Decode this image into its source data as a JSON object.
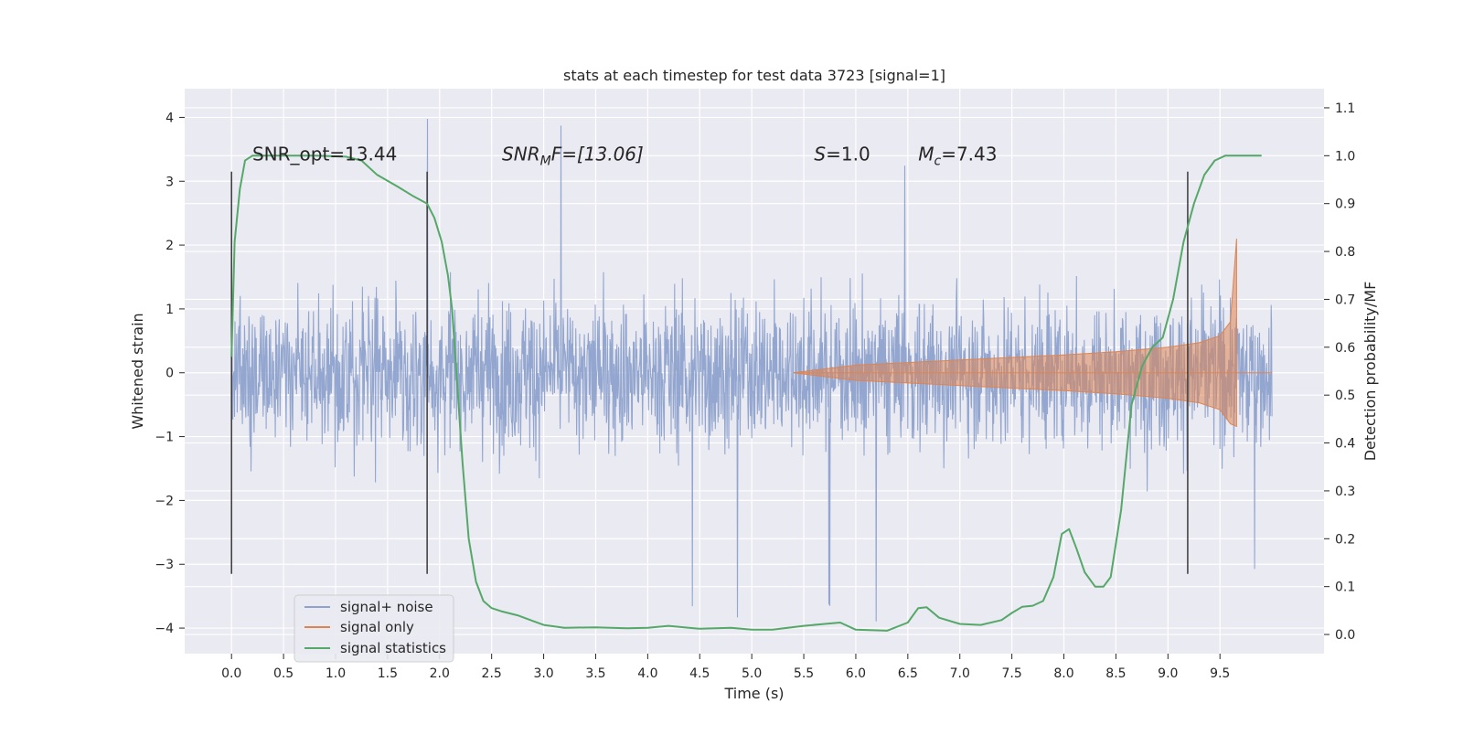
{
  "chart_data": {
    "type": "line",
    "title": "stats at each timestep for test data 3723 [signal=1]",
    "xlabel": "Time (s)",
    "ylabel": "Whitened strain",
    "y2label": "Detection probability/MF",
    "xlim": [
      -0.45,
      10.5
    ],
    "ylim": [
      -4.4,
      4.45
    ],
    "y2lim": [
      -0.04,
      1.14
    ],
    "x_ticks": [
      "0.0",
      "0.5",
      "1.0",
      "1.5",
      "2.0",
      "2.5",
      "3.0",
      "3.5",
      "4.0",
      "4.5",
      "5.0",
      "5.5",
      "6.0",
      "6.5",
      "7.0",
      "7.5",
      "8.0",
      "8.5",
      "9.0",
      "9.5"
    ],
    "y_ticks": [
      "4",
      "3",
      "2",
      "1",
      "0",
      "−1",
      "−2",
      "−3",
      "−4"
    ],
    "y2_ticks": [
      "1.1",
      "1.0",
      "0.9",
      "0.8",
      "0.7",
      "0.6",
      "0.5",
      "0.4",
      "0.3",
      "0.2",
      "0.1",
      "0.0"
    ],
    "grid": true,
    "legend_position": "lower-left",
    "colors": {
      "noise": "#8ea2cc",
      "signal": "#dd8452",
      "stats": "#55a868",
      "background": "#eaeaf2",
      "vline": "#3a3a3a"
    },
    "annotations": [
      {
        "text": "SNR_opt=13.44",
        "x": 0.2,
        "y": 0.99
      },
      {
        "text": "SNR_MF=[13.06]",
        "x": 2.6,
        "y": 0.99
      },
      {
        "text": "S=1.0",
        "x": 5.6,
        "y": 0.99
      },
      {
        "text": "M_c=7.43",
        "x": 6.6,
        "y": 0.99
      }
    ],
    "vertical_lines": [
      {
        "x": 0.0,
        "y_range": [
          -3.15,
          3.15
        ]
      },
      {
        "x": 1.88,
        "y_range": [
          -3.15,
          3.15
        ]
      },
      {
        "x": 9.19,
        "y_range": [
          -3.15,
          3.15
        ]
      }
    ],
    "series": [
      {
        "name": "signal+ noise",
        "axis": "left",
        "x_range": [
          0.0,
          10.0
        ],
        "typical_band": [
          -1.9,
          1.9
        ],
        "extremes": [
          -4.0,
          4.05
        ]
      },
      {
        "name": "signal only",
        "axis": "left",
        "envelope_x": [
          5.4,
          6.0,
          6.5,
          7.0,
          7.5,
          8.0,
          8.5,
          9.0,
          9.3,
          9.5,
          9.6,
          9.66
        ],
        "envelope_y": [
          0.0,
          0.12,
          0.16,
          0.2,
          0.24,
          0.28,
          0.33,
          0.4,
          0.47,
          0.58,
          0.8,
          2.1
        ],
        "end_x": 9.67
      },
      {
        "name": "signal statistics",
        "axis": "right",
        "x": [
          0.0,
          0.03,
          0.08,
          0.13,
          0.2,
          0.3,
          0.5,
          0.8,
          1.1,
          1.25,
          1.4,
          1.6,
          1.75,
          1.88,
          1.95,
          2.02,
          2.08,
          2.12,
          2.17,
          2.22,
          2.28,
          2.35,
          2.42,
          2.5,
          2.6,
          2.75,
          2.9,
          3.0,
          3.2,
          3.5,
          3.8,
          4.0,
          4.2,
          4.5,
          4.8,
          5.0,
          5.2,
          5.5,
          5.7,
          5.85,
          6.0,
          6.3,
          6.5,
          6.6,
          6.68,
          6.8,
          7.0,
          7.2,
          7.4,
          7.5,
          7.6,
          7.7,
          7.8,
          7.9,
          7.98,
          8.05,
          8.12,
          8.2,
          8.3,
          8.38,
          8.45,
          8.55,
          8.65,
          8.75,
          8.85,
          8.95,
          9.05,
          9.15,
          9.25,
          9.35,
          9.45,
          9.55,
          9.65,
          9.75,
          9.9
        ],
        "y": [
          0.58,
          0.82,
          0.93,
          0.99,
          1.0,
          1.0,
          1.0,
          1.0,
          0.998,
          0.99,
          0.96,
          0.935,
          0.915,
          0.9,
          0.87,
          0.82,
          0.75,
          0.68,
          0.52,
          0.36,
          0.2,
          0.11,
          0.07,
          0.055,
          0.048,
          0.04,
          0.028,
          0.02,
          0.014,
          0.015,
          0.013,
          0.014,
          0.018,
          0.012,
          0.014,
          0.01,
          0.01,
          0.018,
          0.022,
          0.025,
          0.01,
          0.008,
          0.025,
          0.055,
          0.057,
          0.035,
          0.022,
          0.02,
          0.03,
          0.045,
          0.058,
          0.06,
          0.07,
          0.12,
          0.21,
          0.22,
          0.18,
          0.13,
          0.1,
          0.1,
          0.12,
          0.26,
          0.48,
          0.56,
          0.6,
          0.62,
          0.7,
          0.82,
          0.9,
          0.96,
          0.99,
          1.0,
          1.0,
          1.0,
          1.0
        ]
      }
    ]
  }
}
